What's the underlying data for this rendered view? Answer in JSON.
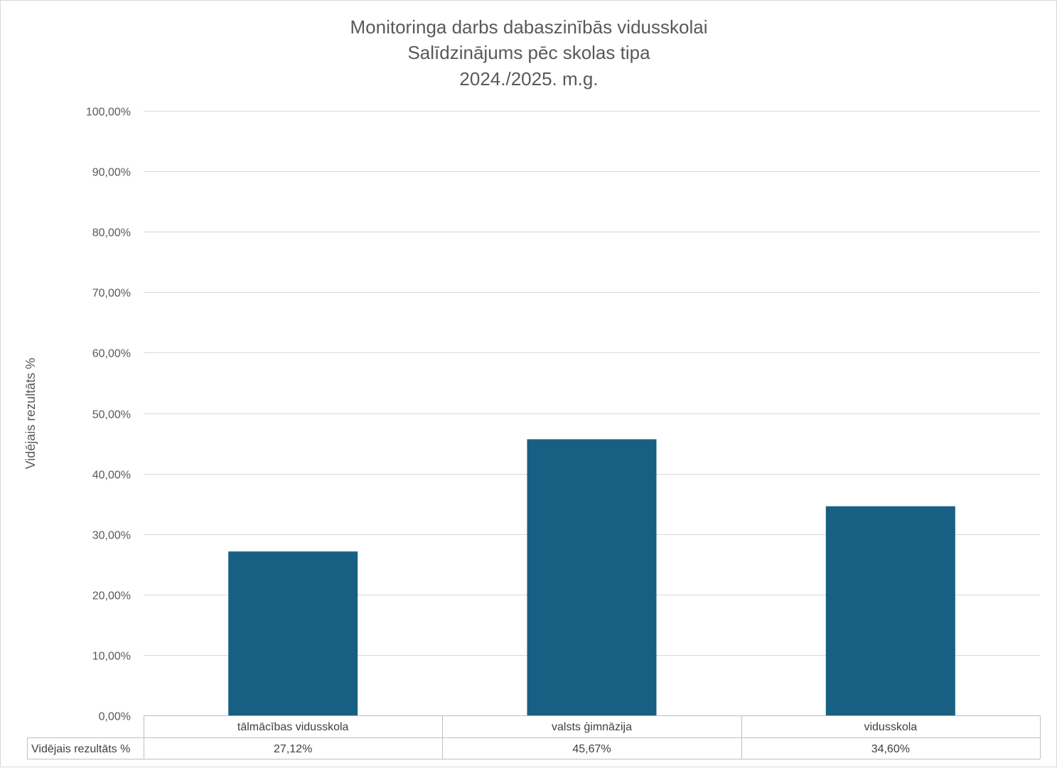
{
  "chart_data": {
    "type": "bar",
    "title": [
      "Monitoringa darbs dabaszinībās vidusskolai",
      "Salīdzinājums pēc skolas tipa",
      "2024./2025. m.g."
    ],
    "xlabel": "",
    "ylabel": "Vidējais rezultāts %",
    "categories": [
      "tālmācības vidusskola",
      "valsts ģimnāzija",
      "vidusskola"
    ],
    "series": [
      {
        "name": "Vidējais rezultāts %",
        "values": [
          27.12,
          45.67,
          34.6
        ],
        "value_labels": [
          "27,12%",
          "45,67%",
          "34,60%"
        ],
        "color": "#176083"
      }
    ],
    "ylim": [
      0,
      100
    ],
    "yticks": [
      0,
      10,
      20,
      30,
      40,
      50,
      60,
      70,
      80,
      90,
      100
    ],
    "ytick_labels": [
      "0,00%",
      "10,00%",
      "20,00%",
      "30,00%",
      "40,00%",
      "50,00%",
      "60,00%",
      "70,00%",
      "80,00%",
      "90,00%",
      "100,00%"
    ],
    "grid": true,
    "legend": "none",
    "data_table": true,
    "colors": {
      "bar": "#176083",
      "grid": "#d9d9d9",
      "text": "#595959",
      "table_border": "#bfbfbf"
    }
  }
}
